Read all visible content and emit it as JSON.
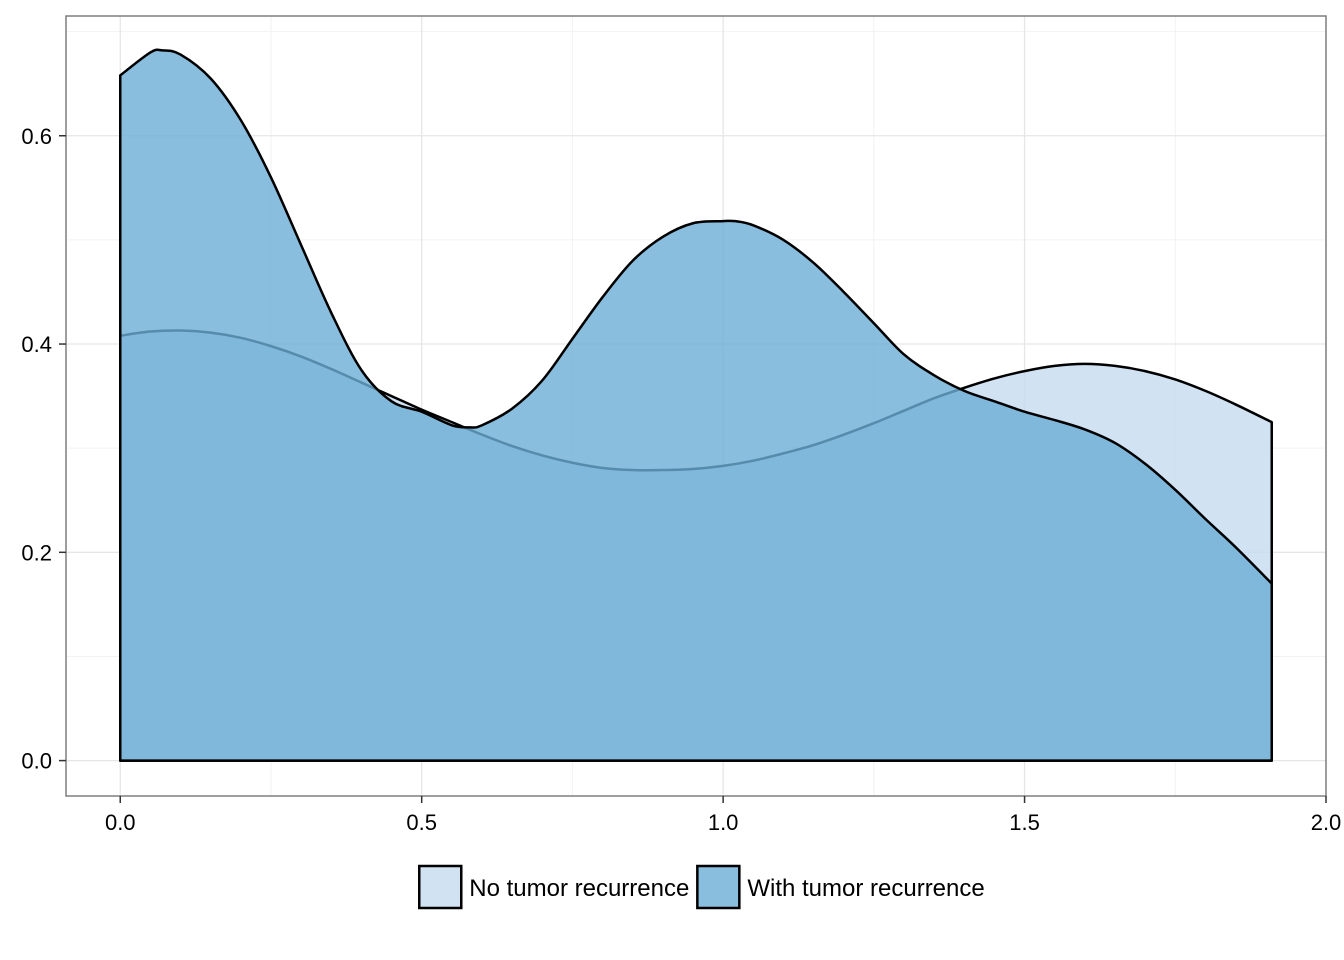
{
  "chart_data": {
    "type": "area",
    "title": "",
    "xlabel": "",
    "ylabel": "",
    "xlim": [
      -0.09,
      2.0
    ],
    "ylim": [
      -0.034,
      0.715
    ],
    "x_ticks": [
      0.0,
      0.5,
      1.0,
      1.5,
      2.0
    ],
    "x_tick_labels": [
      "0.0",
      "0.5",
      "1.0",
      "1.5",
      "2.0"
    ],
    "y_ticks": [
      0.0,
      0.2,
      0.4,
      0.6
    ],
    "y_tick_labels": [
      "0.0",
      "0.2",
      "0.4",
      "0.6"
    ],
    "grid": true,
    "legend_position": "bottom",
    "series": [
      {
        "name": "No tumor recurrence",
        "color": "#c6dbef",
        "x": [
          0.0,
          0.05,
          0.1,
          0.15,
          0.2,
          0.25,
          0.3,
          0.35,
          0.4,
          0.45,
          0.5,
          0.55,
          0.6,
          0.65,
          0.7,
          0.75,
          0.8,
          0.85,
          0.9,
          0.95,
          1.0,
          1.05,
          1.1,
          1.15,
          1.2,
          1.25,
          1.3,
          1.35,
          1.4,
          1.45,
          1.5,
          1.55,
          1.6,
          1.65,
          1.7,
          1.75,
          1.8,
          1.85,
          1.91
        ],
        "y": [
          0.408,
          0.412,
          0.413,
          0.411,
          0.406,
          0.398,
          0.388,
          0.376,
          0.363,
          0.35,
          0.337,
          0.325,
          0.313,
          0.302,
          0.293,
          0.286,
          0.281,
          0.279,
          0.279,
          0.28,
          0.283,
          0.288,
          0.295,
          0.303,
          0.313,
          0.324,
          0.336,
          0.348,
          0.358,
          0.367,
          0.374,
          0.379,
          0.381,
          0.379,
          0.374,
          0.366,
          0.355,
          0.342,
          0.325
        ]
      },
      {
        "name": "With tumor recurrence",
        "color": "#6baed6",
        "x": [
          0.0,
          0.05,
          0.07,
          0.1,
          0.15,
          0.2,
          0.25,
          0.3,
          0.35,
          0.4,
          0.45,
          0.5,
          0.55,
          0.58,
          0.6,
          0.65,
          0.7,
          0.75,
          0.8,
          0.85,
          0.9,
          0.95,
          1.0,
          1.02,
          1.05,
          1.1,
          1.15,
          1.2,
          1.25,
          1.3,
          1.35,
          1.4,
          1.45,
          1.5,
          1.55,
          1.6,
          1.65,
          1.7,
          1.75,
          1.8,
          1.85,
          1.91
        ],
        "y": [
          0.658,
          0.68,
          0.682,
          0.678,
          0.655,
          0.615,
          0.56,
          0.495,
          0.43,
          0.375,
          0.345,
          0.335,
          0.322,
          0.32,
          0.322,
          0.338,
          0.365,
          0.405,
          0.445,
          0.48,
          0.503,
          0.516,
          0.518,
          0.518,
          0.514,
          0.5,
          0.478,
          0.45,
          0.42,
          0.39,
          0.37,
          0.355,
          0.345,
          0.335,
          0.327,
          0.318,
          0.305,
          0.285,
          0.26,
          0.232,
          0.205,
          0.17
        ]
      }
    ]
  }
}
